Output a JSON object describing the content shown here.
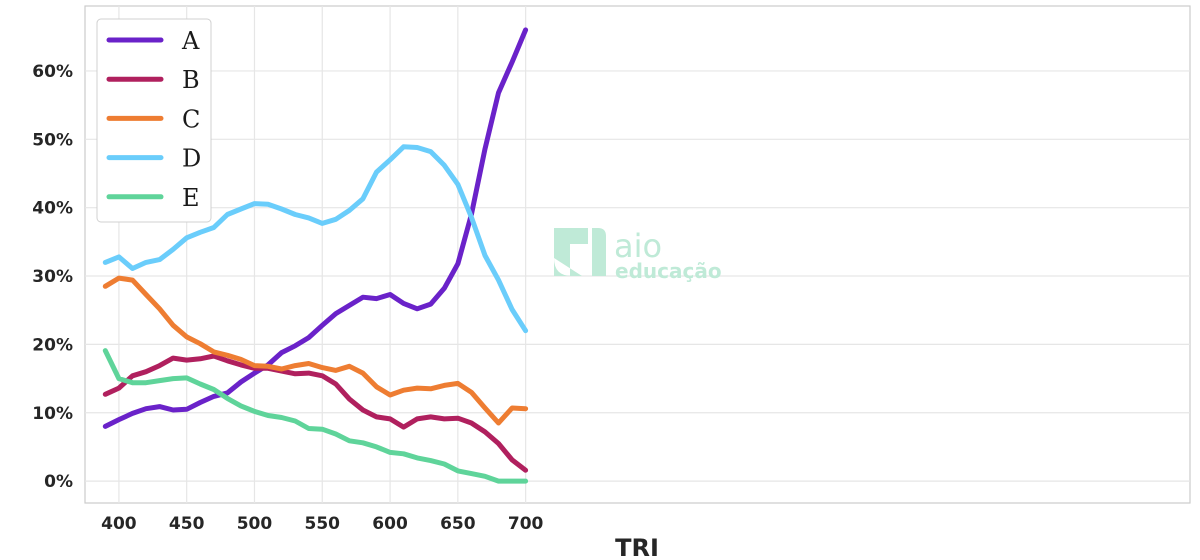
{
  "chart_data": {
    "type": "line",
    "xlabel": "TRI",
    "ylabel": "",
    "xlim": [
      375,
      1190
    ],
    "ylim": [
      -3.2,
      69.5
    ],
    "x_ticks": [
      400,
      450,
      500,
      550,
      600,
      650,
      700
    ],
    "x_tick_labels": [
      "400",
      "450",
      "500",
      "550",
      "600",
      "650",
      "700"
    ],
    "y_ticks": [
      0,
      10,
      20,
      30,
      40,
      50,
      60
    ],
    "y_tick_labels": [
      "0%",
      "10%",
      "20%",
      "30%",
      "40%",
      "50%",
      "60%"
    ],
    "grid": true,
    "legend_position": "top-left",
    "x": [
      390,
      400,
      410,
      420,
      430,
      440,
      450,
      460,
      470,
      480,
      490,
      500,
      510,
      520,
      530,
      540,
      550,
      560,
      570,
      580,
      590,
      600,
      610,
      620,
      630,
      640,
      650,
      660,
      670,
      680,
      690,
      700
    ],
    "series": [
      {
        "name": "A",
        "color": "#6a22c9",
        "values": [
          8.0,
          9.0,
          9.9,
          10.6,
          10.9,
          10.4,
          10.5,
          11.5,
          12.4,
          12.9,
          14.5,
          15.8,
          17.0,
          18.8,
          19.8,
          21.0,
          22.8,
          24.5,
          25.7,
          26.9,
          26.7,
          27.3,
          26.0,
          25.2,
          25.9,
          28.2,
          31.8,
          39.0,
          48.6,
          56.8,
          61.3,
          66.0
        ]
      },
      {
        "name": "B",
        "color": "#b0205e",
        "values": [
          12.7,
          13.6,
          15.4,
          16.0,
          16.9,
          18.0,
          17.7,
          17.9,
          18.3,
          17.6,
          17.0,
          16.5,
          16.5,
          16.1,
          15.7,
          15.8,
          15.4,
          14.2,
          12.0,
          10.4,
          9.4,
          9.1,
          7.9,
          9.1,
          9.4,
          9.1,
          9.2,
          8.5,
          7.2,
          5.5,
          3.1,
          1.6
        ]
      },
      {
        "name": "C",
        "color": "#ee7d32",
        "values": [
          28.5,
          29.7,
          29.4,
          27.3,
          25.2,
          22.8,
          21.1,
          20.1,
          18.9,
          18.4,
          17.8,
          16.9,
          16.8,
          16.4,
          16.9,
          17.2,
          16.6,
          16.2,
          16.8,
          15.8,
          13.8,
          12.6,
          13.3,
          13.6,
          13.5,
          14.0,
          14.3,
          13.0,
          10.7,
          8.5,
          10.7,
          10.6
        ]
      },
      {
        "name": "D",
        "color": "#6acdfb",
        "values": [
          32.0,
          32.8,
          31.1,
          32.0,
          32.4,
          33.9,
          35.6,
          36.4,
          37.1,
          39.0,
          39.8,
          40.6,
          40.5,
          39.8,
          39.0,
          38.5,
          37.7,
          38.3,
          39.6,
          41.3,
          45.2,
          47.0,
          48.9,
          48.8,
          48.2,
          46.2,
          43.4,
          38.6,
          33.0,
          29.4,
          25.1,
          22.0
        ]
      },
      {
        "name": "E",
        "color": "#5fd49a",
        "values": [
          19.1,
          15.0,
          14.4,
          14.4,
          14.7,
          15.0,
          15.1,
          14.2,
          13.4,
          12.1,
          11.0,
          10.2,
          9.6,
          9.3,
          8.8,
          7.7,
          7.6,
          6.9,
          5.9,
          5.6,
          5.0,
          4.2,
          4.0,
          3.4,
          3.0,
          2.5,
          1.5,
          1.1,
          0.7,
          0.0,
          0.0,
          0.0
        ]
      }
    ]
  },
  "watermark": {
    "line1": "aio",
    "line2": "educação"
  }
}
